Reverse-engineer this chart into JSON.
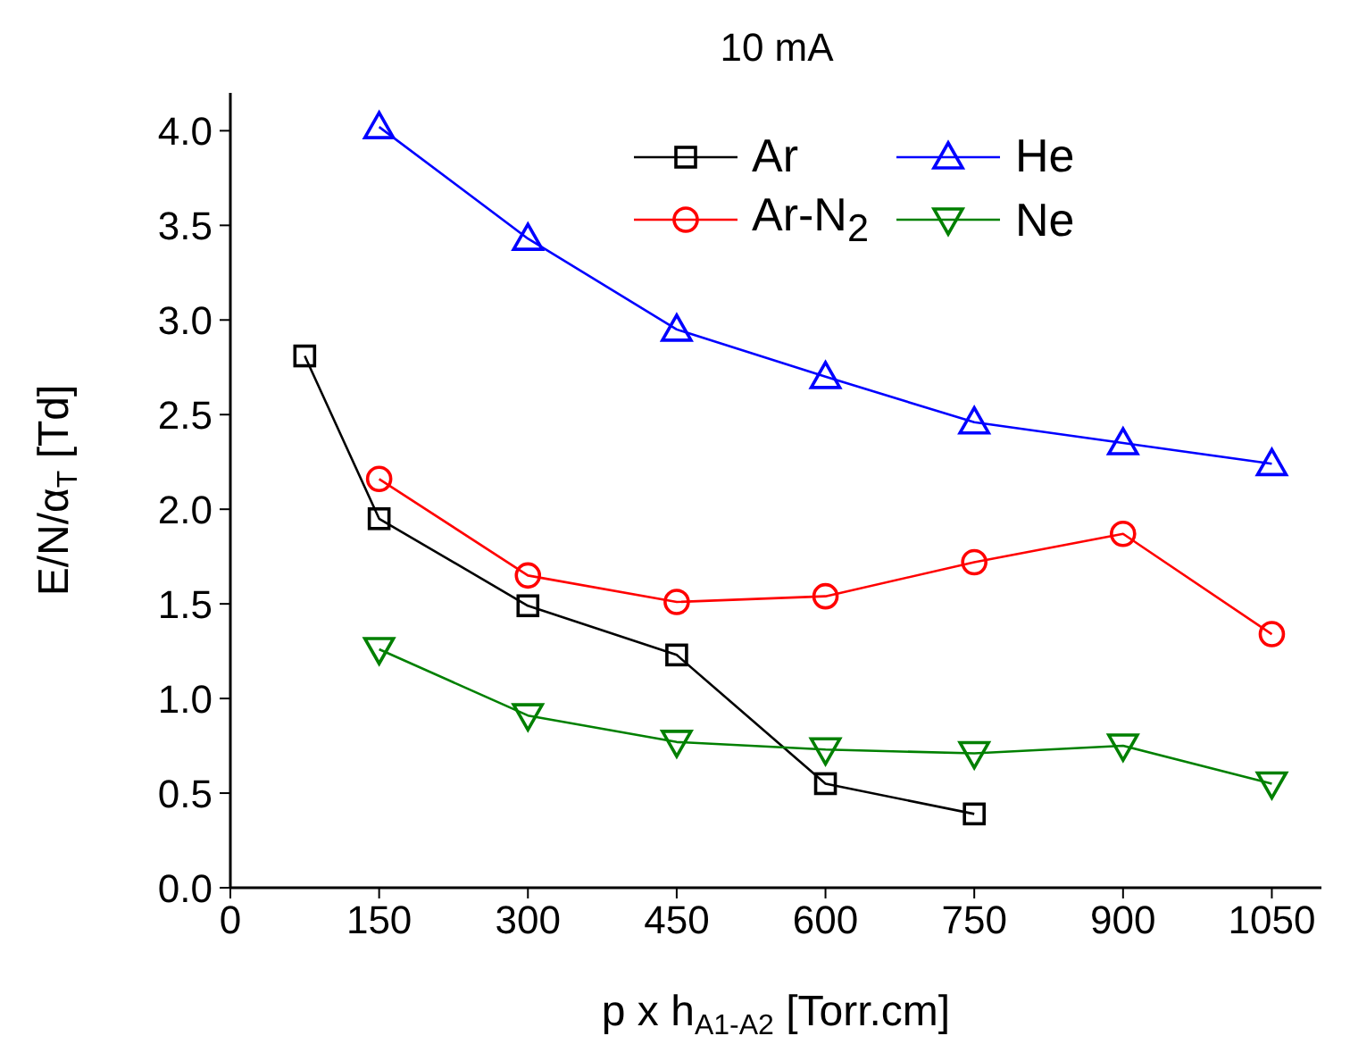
{
  "chart_data": {
    "type": "line",
    "title": "10 mA",
    "xlabel": "p x h$_{A1-A2}$ [Torr.cm]",
    "ylabel": "E/N/α$_{T}$ [Td]",
    "xlim": [
      0,
      1100
    ],
    "xticks": [
      0,
      150,
      300,
      450,
      600,
      750,
      900,
      1050
    ],
    "ylim": [
      0,
      4.2
    ],
    "yticks": [
      {
        "value": 0,
        "label": "0.0"
      },
      {
        "value": 0.5,
        "label": "0.5"
      },
      {
        "value": 1,
        "label": "1.0"
      },
      {
        "value": 1.5,
        "label": "1.5"
      },
      {
        "value": 2,
        "label": "2.0"
      },
      {
        "value": 2.5,
        "label": "2.5"
      },
      {
        "value": 3,
        "label": "3.0"
      },
      {
        "value": 3.5,
        "label": "3.5"
      },
      {
        "value": 4,
        "label": "4.0"
      }
    ],
    "legend": "top right",
    "line_style": "solid",
    "series": [
      {
        "name": "Ar",
        "color": "#000000",
        "marker": "square",
        "x": [
          75,
          150,
          300,
          450,
          600,
          750
        ],
        "values": [
          2.81,
          1.95,
          1.49,
          1.23,
          0.55,
          0.39
        ]
      },
      {
        "name": "Ar-N$_{2}$",
        "color": "#ff0000",
        "marker": "circle",
        "x": [
          150,
          300,
          450,
          600,
          750,
          900,
          1050
        ],
        "values": [
          2.16,
          1.65,
          1.51,
          1.54,
          1.72,
          1.87,
          1.34
        ]
      },
      {
        "name": "He",
        "color": "#0000ff",
        "marker": "triangle",
        "x": [
          150,
          300,
          450,
          600,
          750,
          900,
          1050
        ],
        "values": [
          4.02,
          3.43,
          2.95,
          2.7,
          2.46,
          2.35,
          2.24
        ]
      },
      {
        "name": "Ne",
        "color": "#008000",
        "marker": "triangle-down",
        "x": [
          150,
          300,
          450,
          600,
          750,
          900,
          1050
        ],
        "values": [
          1.26,
          0.91,
          0.77,
          0.73,
          0.71,
          0.75,
          0.55
        ]
      }
    ]
  }
}
